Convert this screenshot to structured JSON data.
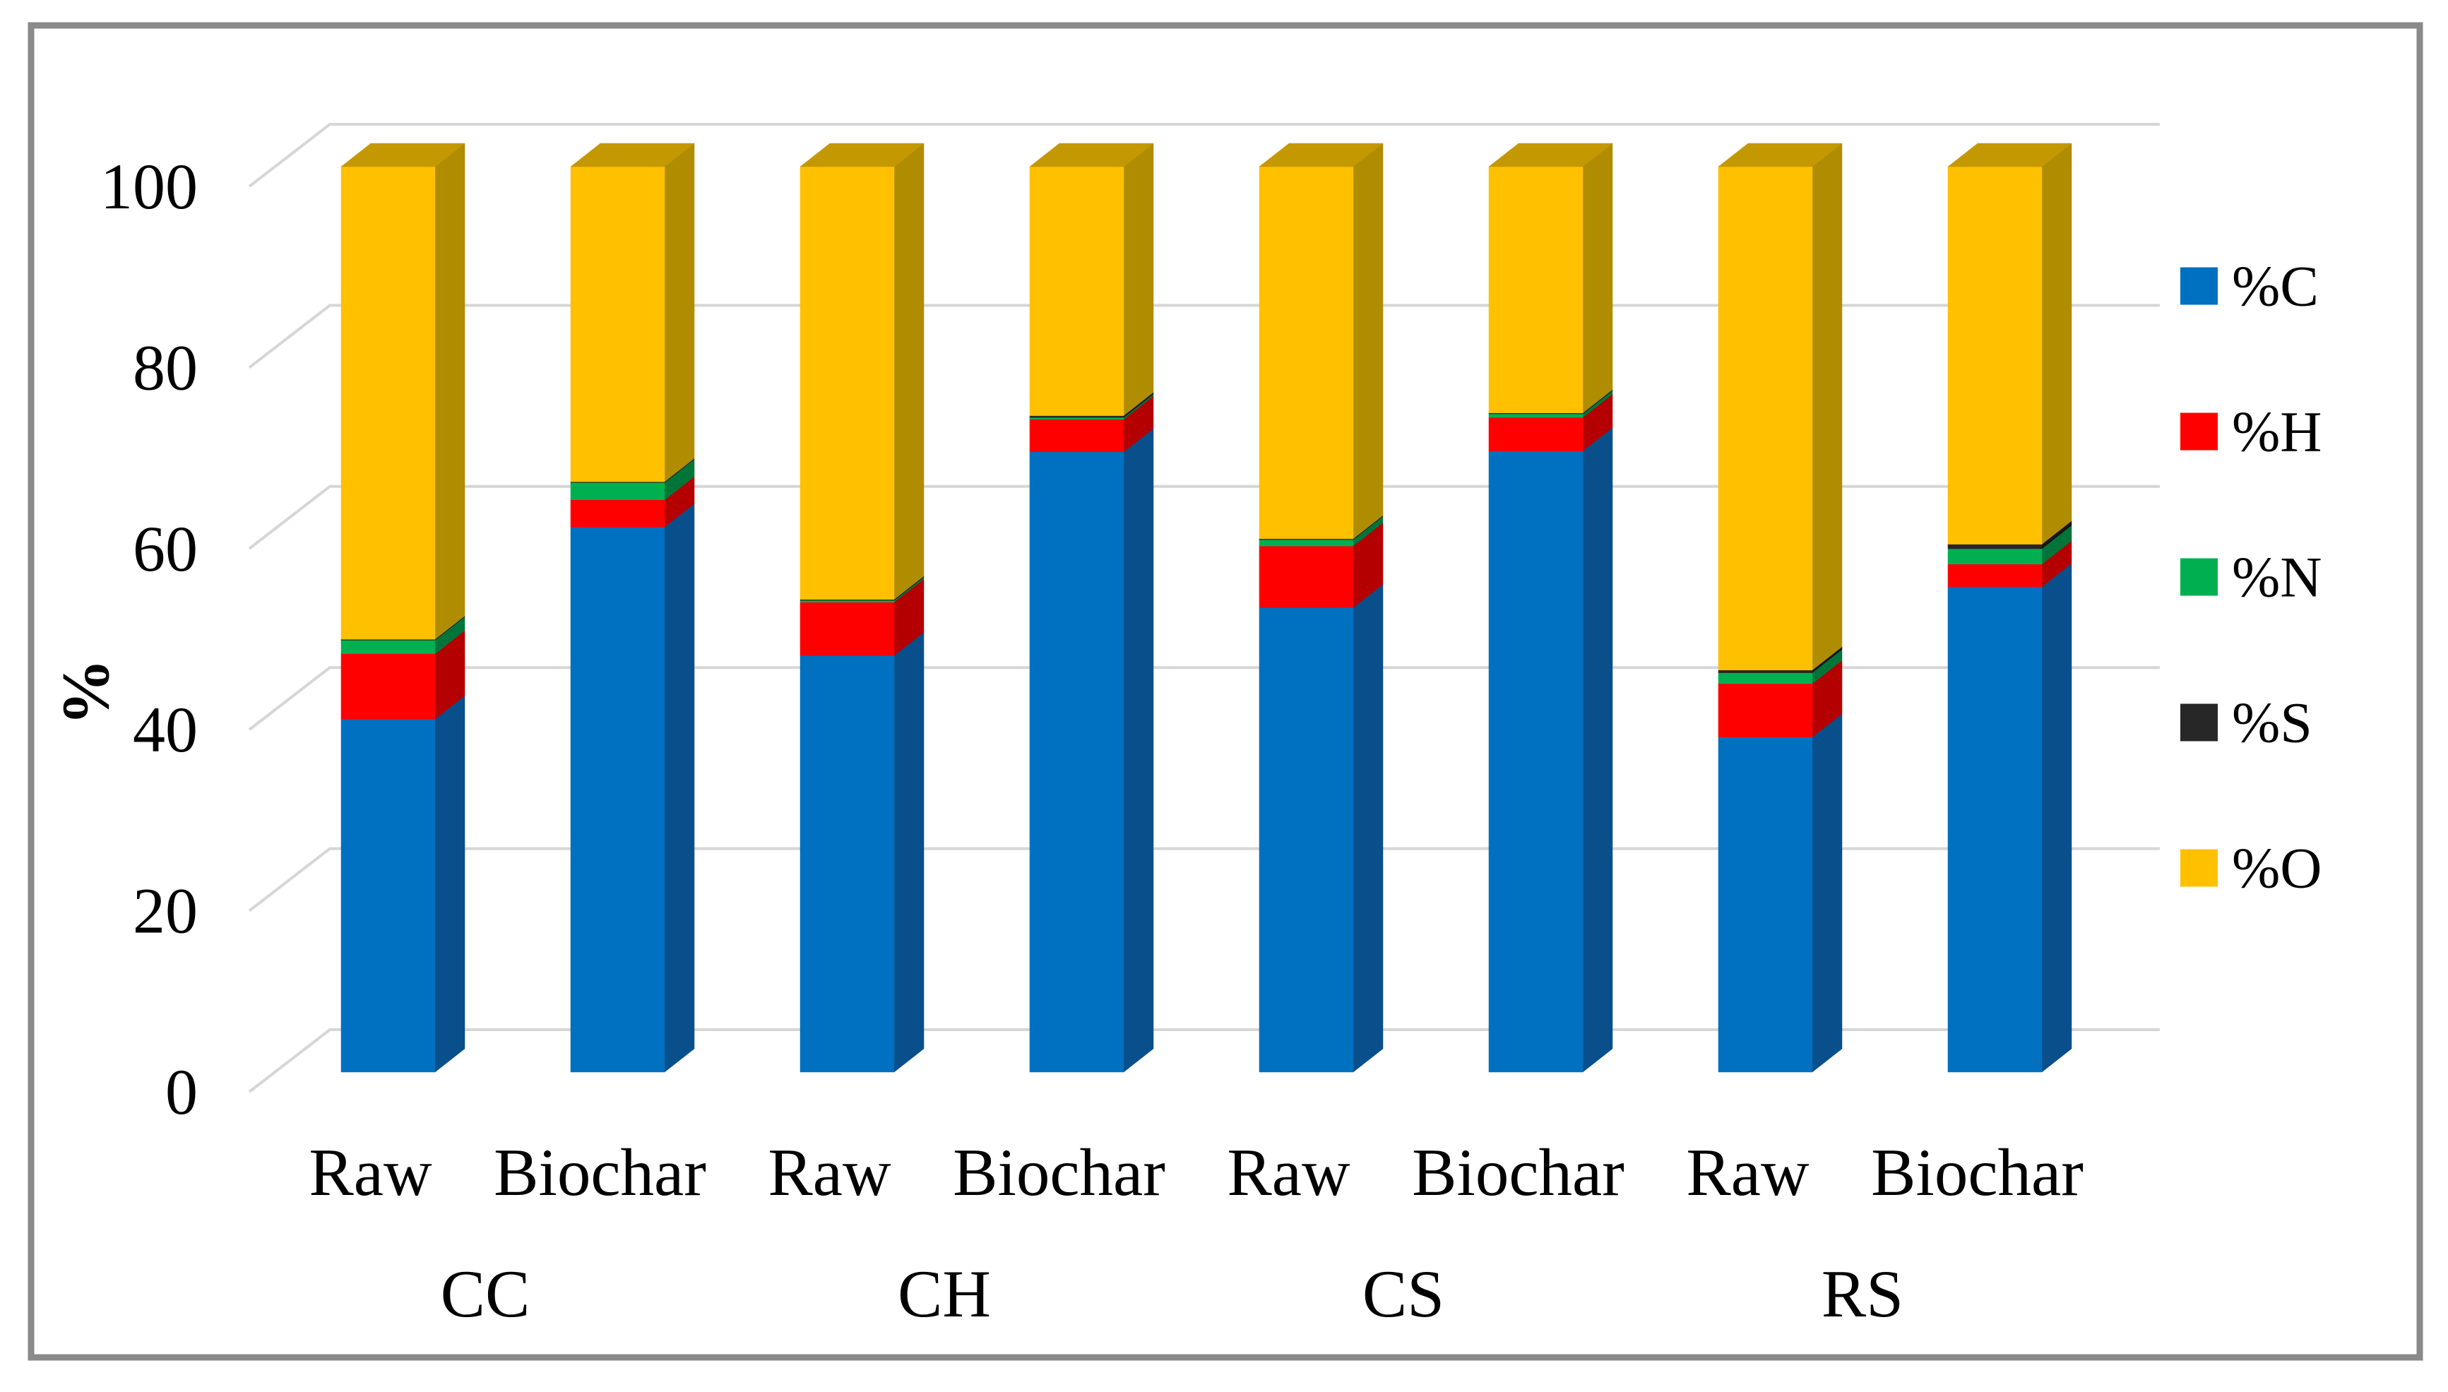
{
  "figure": {
    "background": "#ffffff",
    "border_color": "#8a8a8a"
  },
  "chart_data": {
    "type": "bar",
    "stacked": true,
    "effect": "3d",
    "title": "",
    "ylabel": "%",
    "ylim": [
      0,
      100
    ],
    "yticks": [
      "0",
      "20",
      "40",
      "60",
      "80",
      "100"
    ],
    "grid": true,
    "gridline_color": "#d6d6d6",
    "legend_position": "right",
    "categories": [
      "Raw",
      "Biochar",
      "Raw",
      "Biochar",
      "Raw",
      "Biochar",
      "Raw",
      "Biochar"
    ],
    "groups": [
      "CC",
      "CH",
      "CS",
      "RS"
    ],
    "series": [
      {
        "name": "%C",
        "color": "#0070C0",
        "side_color": "#084F8C",
        "values": [
          39.0,
          60.2,
          46.0,
          68.5,
          51.3,
          68.6,
          37.0,
          53.6
        ]
      },
      {
        "name": "%H",
        "color": "#FF0000",
        "side_color": "#B40000",
        "values": [
          7.2,
          3.0,
          5.9,
          3.6,
          6.8,
          3.7,
          5.9,
          2.5
        ]
      },
      {
        "name": "%N",
        "color": "#00B050",
        "side_color": "#00753A",
        "values": [
          1.5,
          1.9,
          0.2,
          0.2,
          0.7,
          0.4,
          1.2,
          1.7
        ]
      },
      {
        "name": "%S",
        "color": "#272727",
        "side_color": "#151515",
        "values": [
          0.1,
          0.1,
          0.1,
          0.2,
          0.1,
          0.1,
          0.3,
          0.5
        ]
      },
      {
        "name": "%O",
        "color": "#FFC000",
        "side_color": "#AF8C00",
        "top_color": "#C49800",
        "values": [
          52.2,
          34.8,
          47.8,
          27.5,
          41.1,
          27.2,
          55.6,
          41.7
        ]
      }
    ]
  }
}
